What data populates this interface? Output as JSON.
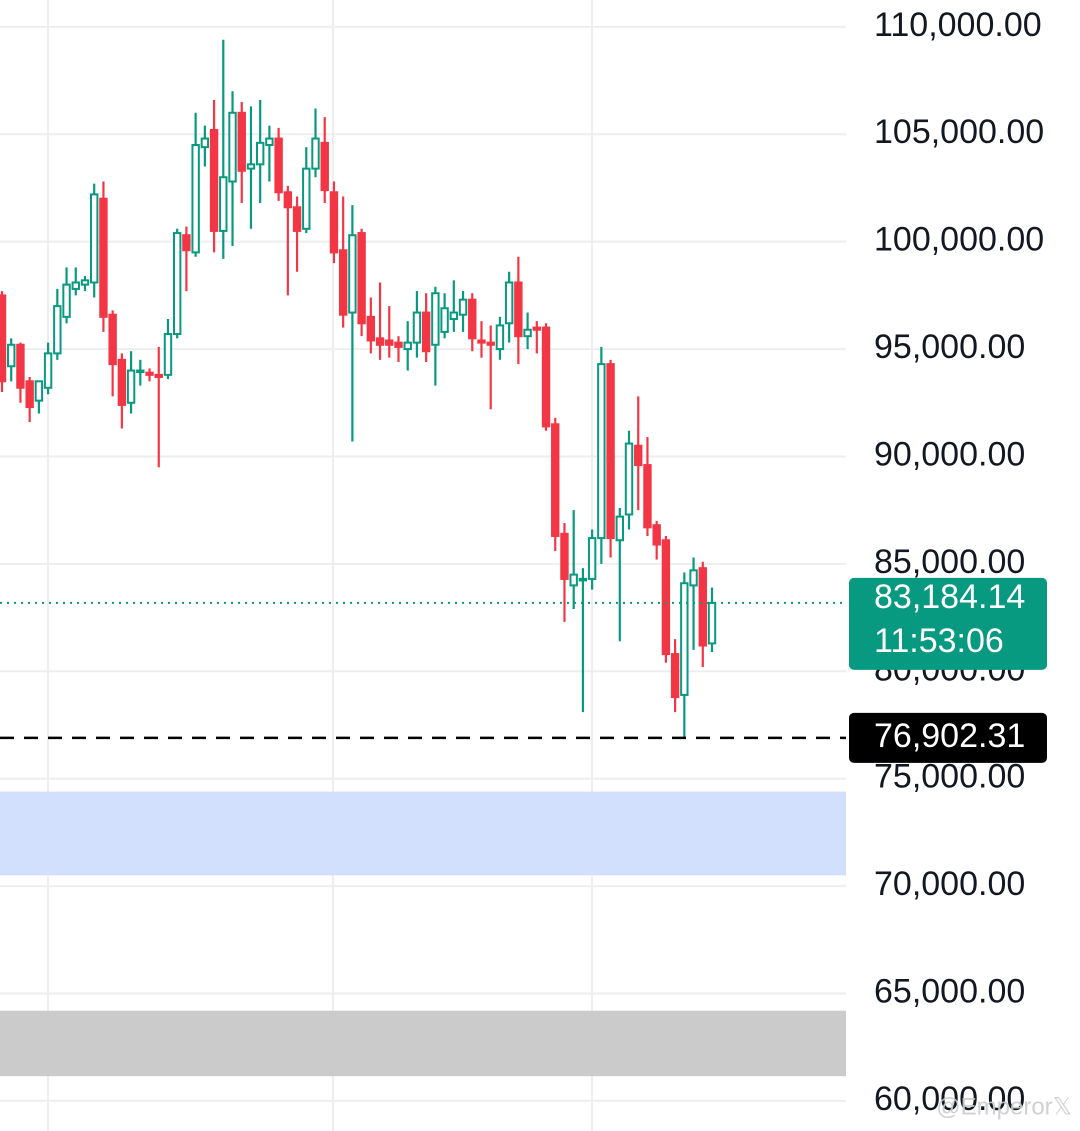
{
  "chart_data": {
    "type": "candlestick",
    "ylim": [
      58600,
      111250
    ],
    "yticks": [
      {
        "value": 110000,
        "label": "110,000.00"
      },
      {
        "value": 105000,
        "label": "105,000.00"
      },
      {
        "value": 100000,
        "label": "100,000.00"
      },
      {
        "value": 95000,
        "label": "95,000.00"
      },
      {
        "value": 90000,
        "label": "90,000.00"
      },
      {
        "value": 85000,
        "label": "85,000.00"
      },
      {
        "value": 80000,
        "label": "80,000.00"
      },
      {
        "value": 75000,
        "label": "75,000.00"
      },
      {
        "value": 70000,
        "label": "70,000.00"
      },
      {
        "value": 65000,
        "label": "65,000.00"
      },
      {
        "value": 60000,
        "label": "60,000.00"
      }
    ],
    "grid": true,
    "up_color": "#089981",
    "down_color": "#f23645",
    "open": [
      97500,
      94200,
      95200,
      93500,
      92600,
      93200,
      94800,
      96500,
      97800,
      98000,
      98100,
      102000,
      96600,
      94500,
      92500,
      94000,
      93900,
      93800,
      93800,
      95700,
      100300,
      99500,
      104400,
      105200,
      100500,
      102800,
      106000,
      103400,
      103600,
      104500,
      104800,
      102300,
      101600,
      100600,
      103400,
      104600,
      102300,
      99600,
      96700,
      100400,
      96500,
      95500,
      95400,
      95300,
      95000,
      95300,
      96700,
      95200,
      95800,
      96400,
      96600,
      97300,
      95400,
      95300,
      95000,
      96200,
      98100,
      95600,
      96000,
      96000,
      91500,
      86400,
      84000,
      84300,
      84300,
      86200,
      94300,
      86100,
      87300,
      90500,
      89600,
      86800,
      86100,
      80800,
      78900,
      84000,
      84800,
      81300
    ],
    "high": [
      97700,
      95500,
      95300,
      93700,
      93000,
      95300,
      97800,
      98800,
      98800,
      98400,
      102700,
      102800,
      96800,
      94800,
      94900,
      94500,
      94100,
      95100,
      96400,
      100600,
      100700,
      106000,
      105400,
      106600,
      109400,
      107000,
      106500,
      106300,
      106600,
      105400,
      105300,
      102600,
      102100,
      104400,
      106200,
      105800,
      102800,
      102100,
      101700,
      100600,
      97400,
      98100,
      97000,
      95600,
      96300,
      97700,
      97600,
      97900,
      97600,
      98200,
      97700,
      97600,
      96300,
      96100,
      96500,
      98600,
      99300,
      96700,
      96300,
      96200,
      91800,
      86900,
      87500,
      84800,
      86600,
      95100,
      94500,
      87600,
      91200,
      92800,
      90900,
      87000,
      86300,
      81500,
      84600,
      85300,
      85100,
      83900
    ],
    "low": [
      93000,
      93500,
      92500,
      91600,
      92000,
      92900,
      94500,
      96200,
      97500,
      97700,
      97400,
      95800,
      92800,
      91300,
      92000,
      93300,
      93500,
      89500,
      93600,
      95500,
      97700,
      99300,
      103500,
      99500,
      99200,
      99800,
      101800,
      100600,
      101800,
      102800,
      101900,
      97500,
      98600,
      100400,
      103000,
      101800,
      99000,
      96000,
      90700,
      95600,
      94800,
      94500,
      94600,
      94400,
      94000,
      94600,
      94400,
      93300,
      95500,
      95800,
      95800,
      94900,
      94600,
      92200,
      94500,
      95300,
      94300,
      95000,
      94800,
      91200,
      85600,
      82300,
      82900,
      78100,
      83800,
      85000,
      85300,
      81400,
      86600,
      87500,
      86300,
      85200,
      80400,
      78100,
      76902.31,
      81000,
      80200,
      80900
    ],
    "close": [
      93500,
      95200,
      93200,
      92300,
      93500,
      94800,
      97000,
      98000,
      98100,
      98200,
      102200,
      96500,
      94300,
      92400,
      94000,
      94000,
      93800,
      93700,
      95700,
      100400,
      99600,
      104500,
      104800,
      100500,
      103000,
      106000,
      103300,
      103600,
      104600,
      104800,
      102300,
      101600,
      100500,
      103400,
      104800,
      102400,
      99500,
      96600,
      100300,
      96200,
      95400,
      95200,
      95200,
      95100,
      95300,
      96700,
      94900,
      97600,
      96900,
      96700,
      97300,
      95500,
      95300,
      95200,
      96100,
      98100,
      95600,
      95900,
      95900,
      91400,
      86300,
      84300,
      84500,
      84300,
      86200,
      94300,
      86200,
      87200,
      90600,
      89600,
      86700,
      85900,
      80800,
      78800,
      84100,
      84700,
      81200,
      83184.14
    ],
    "last_price": {
      "value": 83184.14,
      "label": "83,184.14"
    },
    "countdown": "11:53:06",
    "low_marker": {
      "value": 76902.31,
      "label": "76,902.31"
    },
    "zones": [
      {
        "from": 74400,
        "to": 70500,
        "color": "#d3e0fd"
      },
      {
        "from": 64200,
        "to": 61150,
        "color": "#cbcbcb"
      }
    ],
    "watermark": "@Emperor𝕏"
  }
}
